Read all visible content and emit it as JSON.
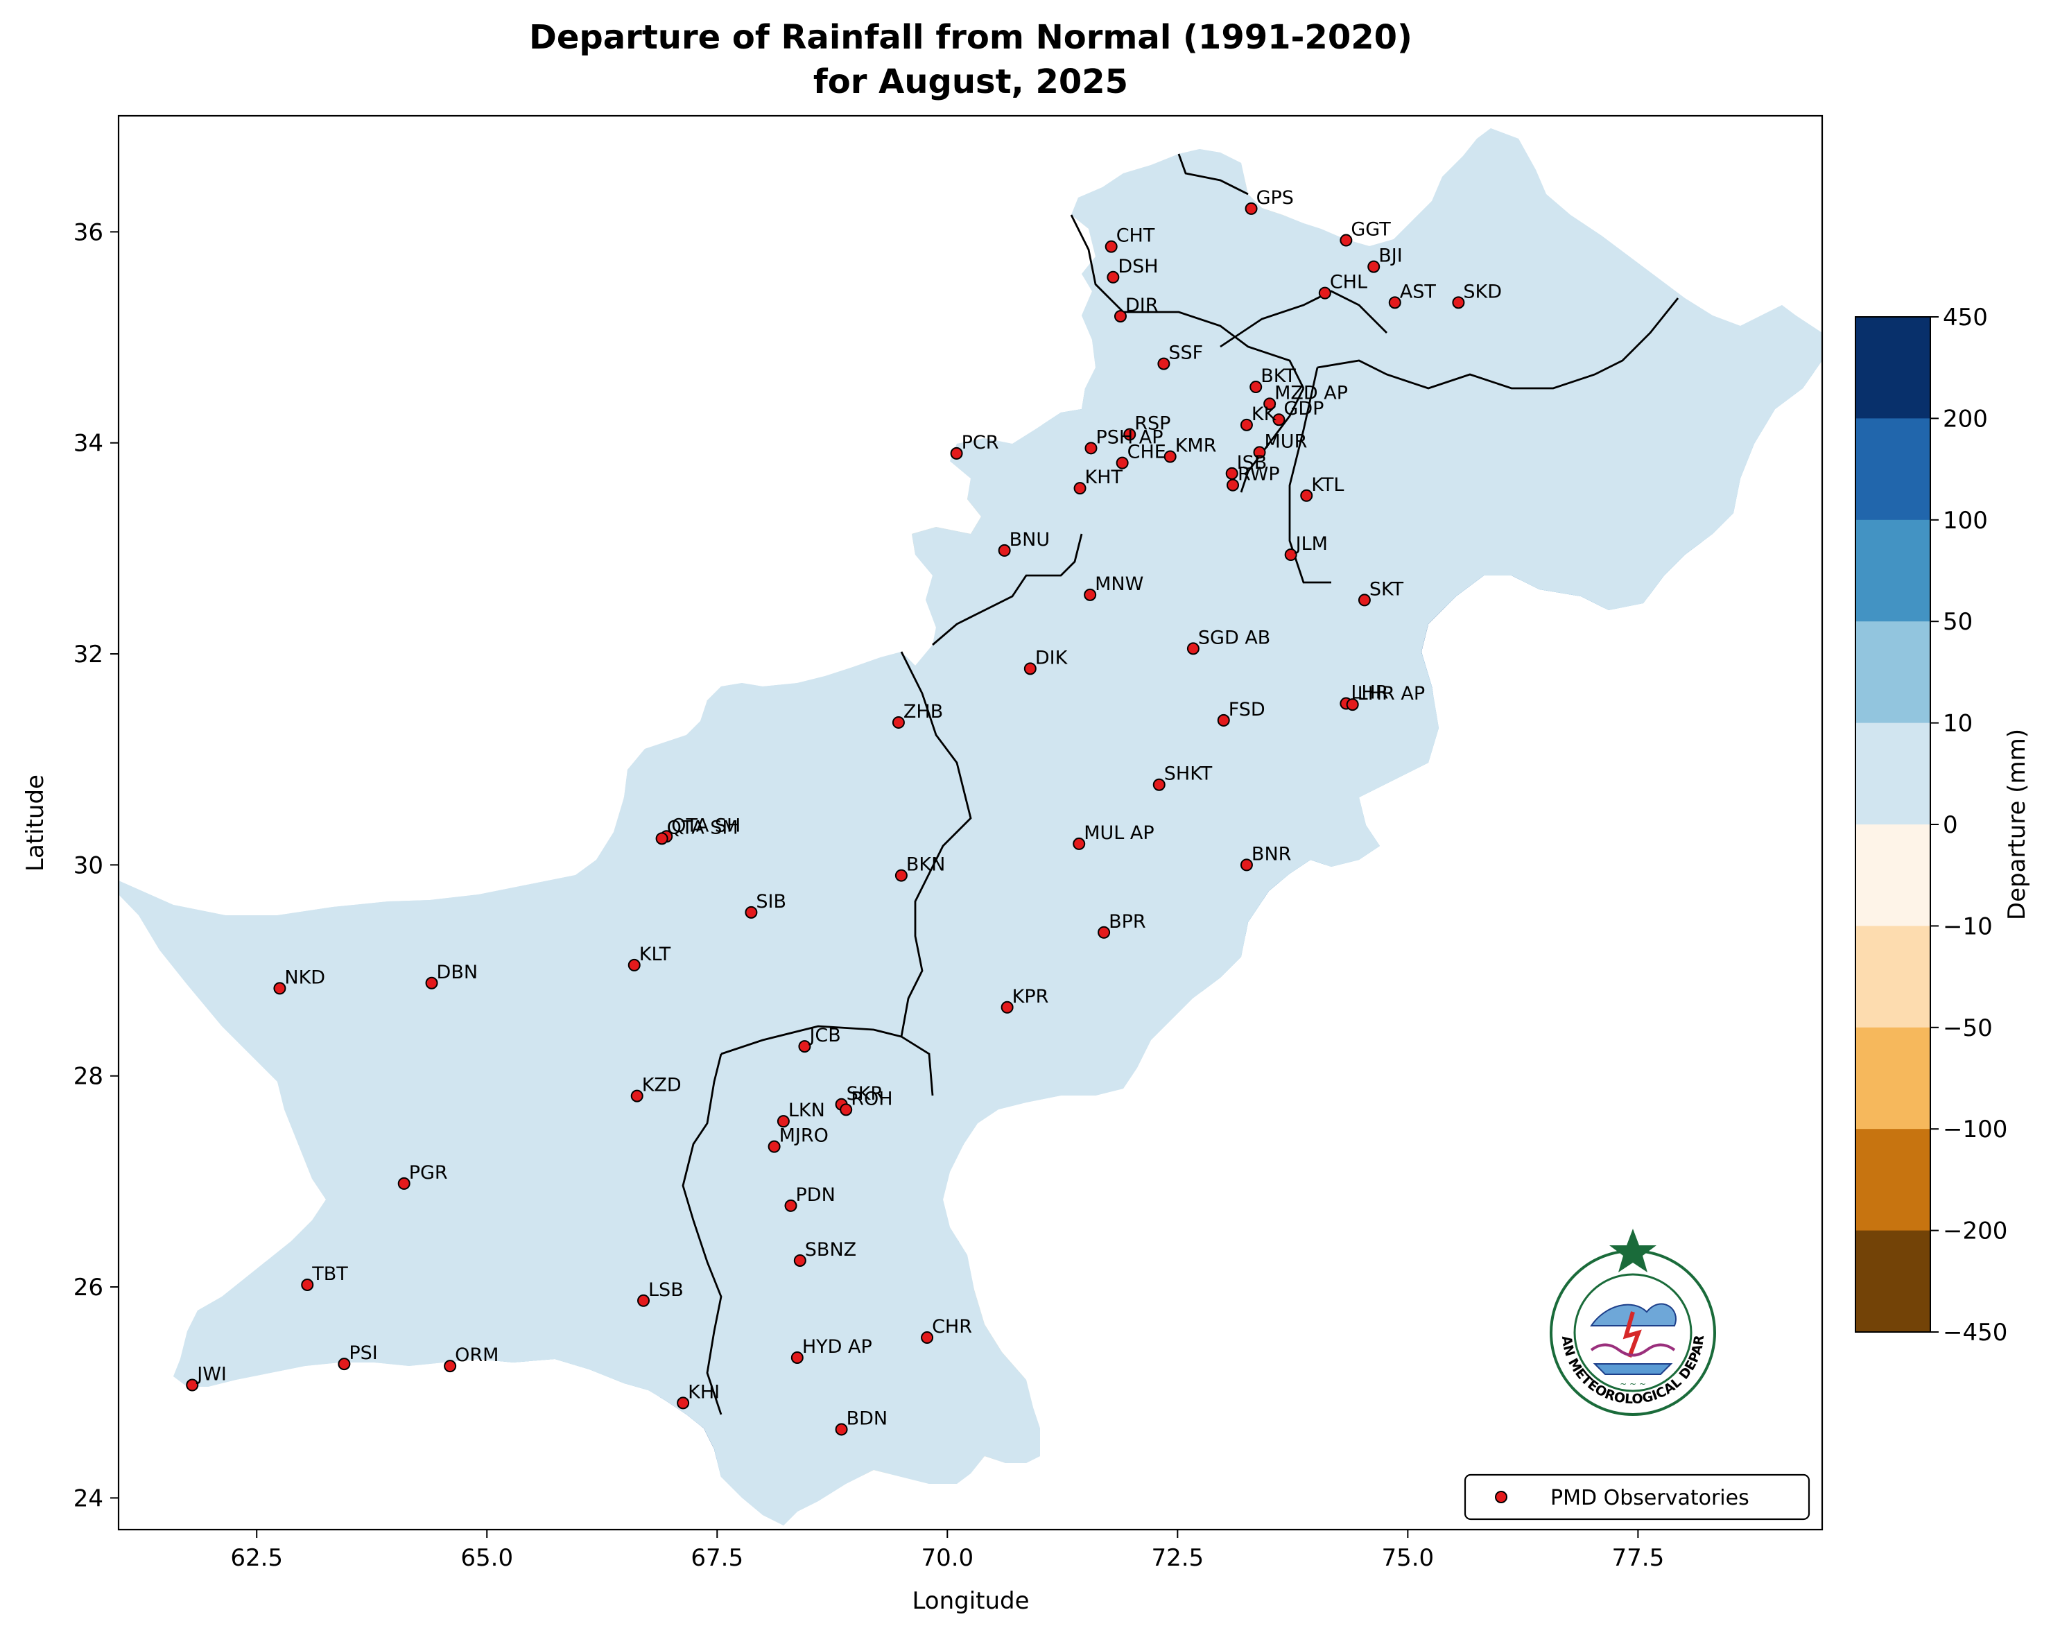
{
  "title_line1": "Departure of Rainfall from Normal (1991-2020)",
  "title_line2": "for August, 2025",
  "xlabel": "Longitude",
  "ylabel": "Latitude",
  "x_ticks": [
    "62.5",
    "65.0",
    "67.5",
    "70.0",
    "72.5",
    "75.0",
    "77.5"
  ],
  "y_ticks": [
    "24",
    "26",
    "28",
    "30",
    "32",
    "34",
    "36"
  ],
  "x_tick_values": [
    62.5,
    65.0,
    67.5,
    70.0,
    72.5,
    75.0,
    77.5
  ],
  "y_tick_values": [
    24,
    26,
    28,
    30,
    32,
    34,
    36
  ],
  "xlim": [
    61.0,
    79.5
  ],
  "ylim": [
    23.7,
    37.1
  ],
  "colorbar_label": "Departure (mm)",
  "colorbar_levels": [
    "450",
    "200",
    "100",
    "50",
    "10",
    "0",
    "−10",
    "−50",
    "−100",
    "−200",
    "−450"
  ],
  "colorbar_colors": [
    "#08306b",
    "#2166ac",
    "#4393c3",
    "#92c5de",
    "#d1e5f0",
    "#fef4e8",
    "#fddcaf",
    "#f6b85c",
    "#c77410",
    "#734307"
  ],
  "legend_label": "PMD Observatories",
  "legend_position": "lower-right",
  "logo_text": "PAKISTAN METEOROLOGICAL DEPARTMENT",
  "stations": [
    {
      "code": "GPS",
      "lon": 73.3,
      "lat": 36.22
    },
    {
      "code": "CHT",
      "lon": 71.78,
      "lat": 35.86
    },
    {
      "code": "GGT",
      "lon": 74.33,
      "lat": 35.92
    },
    {
      "code": "BJI",
      "lon": 74.63,
      "lat": 35.67
    },
    {
      "code": "DSH",
      "lon": 71.8,
      "lat": 35.57
    },
    {
      "code": "CHL",
      "lon": 74.1,
      "lat": 35.42
    },
    {
      "code": "AST",
      "lon": 74.86,
      "lat": 35.33
    },
    {
      "code": "SKD",
      "lon": 75.55,
      "lat": 35.33
    },
    {
      "code": "DIR",
      "lon": 71.88,
      "lat": 35.2
    },
    {
      "code": "SSF",
      "lon": 72.35,
      "lat": 34.75
    },
    {
      "code": "BKT",
      "lon": 73.35,
      "lat": 34.53
    },
    {
      "code": "MZD AP",
      "lon": 73.5,
      "lat": 34.37
    },
    {
      "code": "GDP",
      "lon": 73.6,
      "lat": 34.22
    },
    {
      "code": "KK",
      "lon": 73.25,
      "lat": 34.17
    },
    {
      "code": "RSP",
      "lon": 71.98,
      "lat": 34.08
    },
    {
      "code": "PSH AP",
      "lon": 71.56,
      "lat": 33.95
    },
    {
      "code": "KMR",
      "lon": 72.42,
      "lat": 33.87
    },
    {
      "code": "MUR",
      "lon": 73.39,
      "lat": 33.91
    },
    {
      "code": "PCR",
      "lon": 70.1,
      "lat": 33.9
    },
    {
      "code": "CHE",
      "lon": 71.9,
      "lat": 33.81
    },
    {
      "code": "ISB",
      "lon": 73.09,
      "lat": 33.71
    },
    {
      "code": "RWP",
      "lon": 73.1,
      "lat": 33.6
    },
    {
      "code": "KHT",
      "lon": 71.44,
      "lat": 33.57
    },
    {
      "code": "KTL",
      "lon": 73.9,
      "lat": 33.5
    },
    {
      "code": "BNU",
      "lon": 70.62,
      "lat": 32.98
    },
    {
      "code": "JLM",
      "lon": 73.73,
      "lat": 32.94
    },
    {
      "code": "MNW",
      "lon": 71.55,
      "lat": 32.56
    },
    {
      "code": "SKT",
      "lon": 74.53,
      "lat": 32.51
    },
    {
      "code": "SGD AB",
      "lon": 72.67,
      "lat": 32.05
    },
    {
      "code": "DIK",
      "lon": 70.9,
      "lat": 31.86
    },
    {
      "code": "LHR",
      "lon": 74.33,
      "lat": 31.53
    },
    {
      "code": "LHR AP",
      "lon": 74.4,
      "lat": 31.52
    },
    {
      "code": "FSD",
      "lon": 73.0,
      "lat": 31.37
    },
    {
      "code": "ZHB",
      "lon": 69.47,
      "lat": 31.35
    },
    {
      "code": "SHKT",
      "lon": 72.3,
      "lat": 30.76
    },
    {
      "code": "QTA SH",
      "lon": 66.95,
      "lat": 30.27
    },
    {
      "code": "QTA SM",
      "lon": 66.9,
      "lat": 30.25
    },
    {
      "code": "MUL AP",
      "lon": 71.43,
      "lat": 30.2
    },
    {
      "code": "BNR",
      "lon": 73.25,
      "lat": 30.0
    },
    {
      "code": "BKN",
      "lon": 69.5,
      "lat": 29.9
    },
    {
      "code": "SIB",
      "lon": 67.87,
      "lat": 29.55
    },
    {
      "code": "BPR",
      "lon": 71.7,
      "lat": 29.36
    },
    {
      "code": "KLT",
      "lon": 66.6,
      "lat": 29.05
    },
    {
      "code": "NKD",
      "lon": 62.75,
      "lat": 28.83
    },
    {
      "code": "DBN",
      "lon": 64.4,
      "lat": 28.88
    },
    {
      "code": "KPR",
      "lon": 70.65,
      "lat": 28.65
    },
    {
      "code": "JCB",
      "lon": 68.45,
      "lat": 28.28
    },
    {
      "code": "KZD",
      "lon": 66.63,
      "lat": 27.81
    },
    {
      "code": "SKR",
      "lon": 68.85,
      "lat": 27.73
    },
    {
      "code": "ROH",
      "lon": 68.9,
      "lat": 27.68
    },
    {
      "code": "LKN",
      "lon": 68.22,
      "lat": 27.57
    },
    {
      "code": "MJRO",
      "lon": 68.12,
      "lat": 27.33
    },
    {
      "code": "PGR",
      "lon": 64.1,
      "lat": 26.98
    },
    {
      "code": "PDN",
      "lon": 68.3,
      "lat": 26.77
    },
    {
      "code": "SBNZ",
      "lon": 68.4,
      "lat": 26.25
    },
    {
      "code": "TBT",
      "lon": 63.05,
      "lat": 26.02
    },
    {
      "code": "LSB",
      "lon": 66.7,
      "lat": 25.87
    },
    {
      "code": "CHR",
      "lon": 69.78,
      "lat": 25.52
    },
    {
      "code": "HYD AP",
      "lon": 68.37,
      "lat": 25.33
    },
    {
      "code": "ORM",
      "lon": 64.6,
      "lat": 25.25
    },
    {
      "code": "PSI",
      "lon": 63.45,
      "lat": 25.27
    },
    {
      "code": "JWI",
      "lon": 61.8,
      "lat": 25.07
    },
    {
      "code": "KHI",
      "lon": 67.13,
      "lat": 24.9
    },
    {
      "code": "BDN",
      "lon": 68.85,
      "lat": 24.65
    }
  ]
}
